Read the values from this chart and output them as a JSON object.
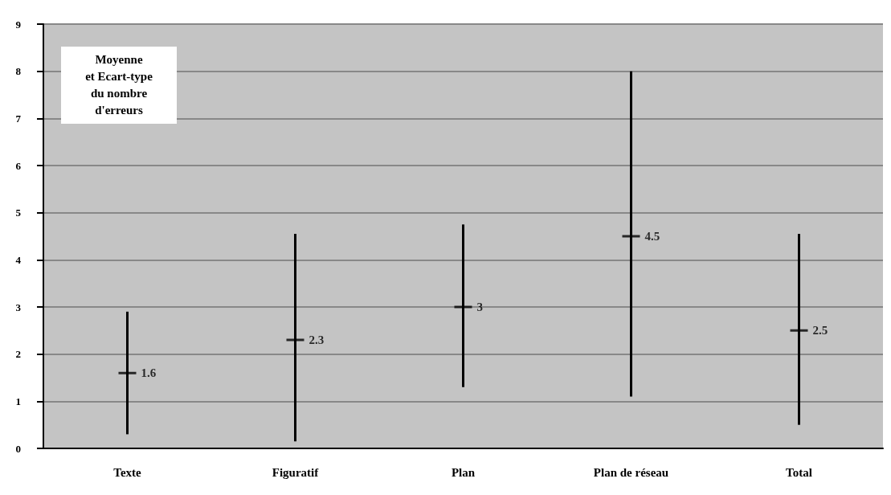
{
  "chart_data": {
    "type": "scatter",
    "title": "Moyenne\net Ecart-type\ndu nombre\nd'erreurs",
    "categories": [
      "Texte",
      "Figuratif",
      "Plan",
      "Plan de réseau",
      "Total"
    ],
    "series": [
      {
        "color": "#000000",
        "values": [
          1.6,
          2.3,
          3,
          4.5,
          2.5
        ],
        "errors": [
          [
            0.3,
            2.9
          ],
          [
            0.15,
            4.55
          ],
          [
            1.3,
            4.75
          ],
          [
            1.1,
            8.0
          ],
          [
            0.5,
            4.55
          ]
        ]
      }
    ],
    "ylim": [
      0,
      9
    ],
    "yticks": [
      0,
      1,
      2,
      3,
      4,
      5,
      6,
      7,
      8,
      9
    ],
    "grid": "y",
    "marker": "cross",
    "data_labels": true
  }
}
